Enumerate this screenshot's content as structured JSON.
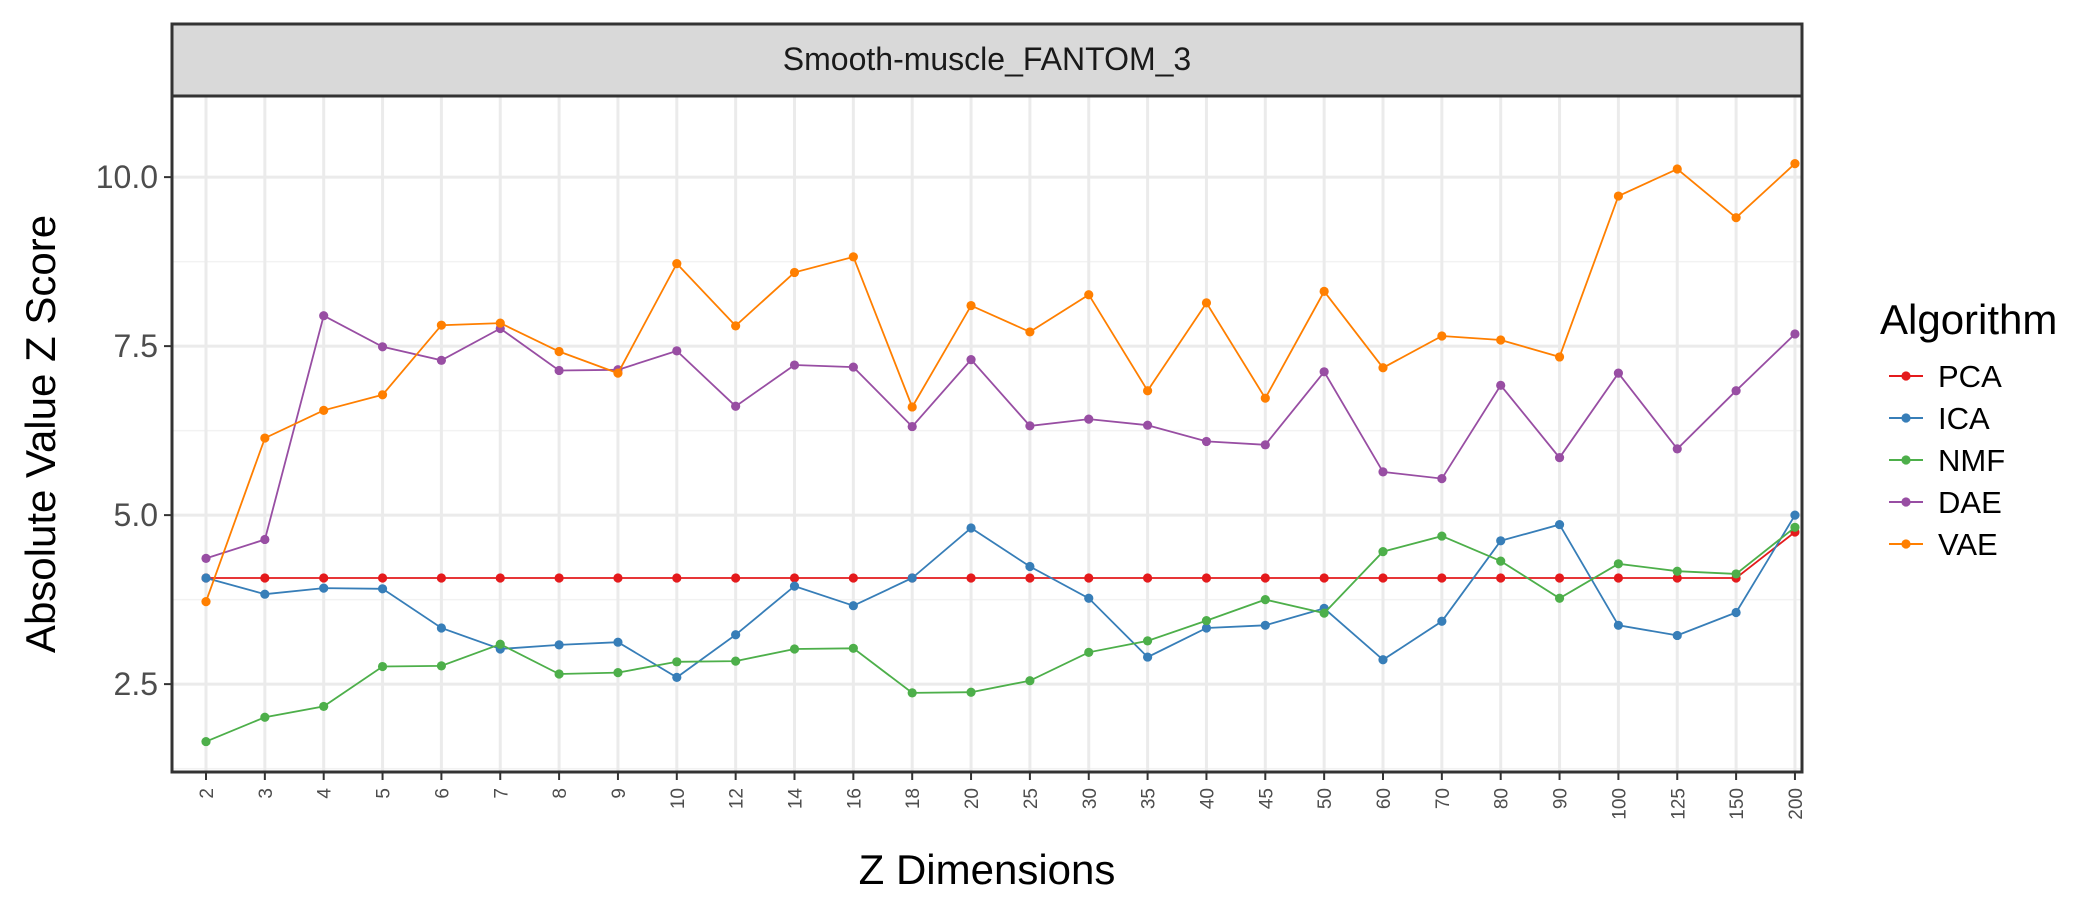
{
  "chart_data": {
    "type": "line",
    "facet_title": "Smooth-muscle_FANTOM_3",
    "xlabel": "Z Dimensions",
    "ylabel": "Absolute Value Z Score",
    "categories": [
      "2",
      "3",
      "4",
      "5",
      "6",
      "7",
      "8",
      "9",
      "10",
      "12",
      "14",
      "16",
      "18",
      "20",
      "25",
      "30",
      "35",
      "40",
      "45",
      "50",
      "60",
      "70",
      "80",
      "90",
      "100",
      "125",
      "150",
      "200"
    ],
    "ylim": [
      1.2,
      11.2
    ],
    "yticks": [
      "2.5",
      "5.0",
      "7.5",
      "10.0"
    ],
    "grid": true,
    "legend_title": "Algorithm",
    "legend_position": "right",
    "series": [
      {
        "name": "PCA",
        "color": "#E41A1C",
        "values": [
          4.07,
          4.07,
          4.07,
          4.07,
          4.07,
          4.07,
          4.07,
          4.07,
          4.07,
          4.07,
          4.07,
          4.07,
          4.07,
          4.07,
          4.07,
          4.07,
          4.07,
          4.07,
          4.07,
          4.07,
          4.07,
          4.07,
          4.07,
          4.07,
          4.07,
          4.07,
          4.07,
          4.75
        ]
      },
      {
        "name": "ICA",
        "color": "#377EB8",
        "values": [
          4.07,
          3.83,
          3.92,
          3.91,
          3.33,
          3.02,
          3.08,
          3.12,
          2.6,
          3.23,
          3.95,
          3.66,
          4.07,
          4.81,
          4.24,
          3.77,
          2.9,
          3.33,
          3.37,
          3.62,
          2.86,
          3.43,
          4.62,
          4.86,
          3.37,
          3.22,
          3.56,
          5.0
        ]
      },
      {
        "name": "NMF",
        "color": "#4DAF4A",
        "values": [
          1.65,
          2.01,
          2.17,
          2.76,
          2.77,
          3.09,
          2.65,
          2.67,
          2.83,
          2.84,
          3.02,
          3.03,
          2.37,
          2.38,
          2.55,
          2.97,
          3.14,
          3.44,
          3.75,
          3.55,
          4.46,
          4.69,
          4.32,
          3.77,
          4.28,
          4.17,
          4.13,
          4.82
        ]
      },
      {
        "name": "DAE",
        "color": "#984EA3",
        "values": [
          4.36,
          4.64,
          7.95,
          7.49,
          7.29,
          7.76,
          7.14,
          7.15,
          7.43,
          6.61,
          7.22,
          7.19,
          6.31,
          7.3,
          6.32,
          6.42,
          6.33,
          6.09,
          6.04,
          7.12,
          5.64,
          5.54,
          6.92,
          5.85,
          7.1,
          5.98,
          6.84,
          7.68
        ]
      },
      {
        "name": "VAE",
        "color": "#FF7F00",
        "values": [
          3.72,
          6.14,
          6.55,
          6.78,
          7.81,
          7.84,
          7.42,
          7.1,
          8.72,
          7.8,
          8.59,
          8.82,
          6.6,
          8.1,
          7.71,
          8.26,
          6.84,
          8.14,
          6.73,
          8.31,
          7.18,
          7.65,
          7.59,
          7.34,
          9.72,
          10.12,
          9.4,
          10.2
        ]
      }
    ]
  }
}
